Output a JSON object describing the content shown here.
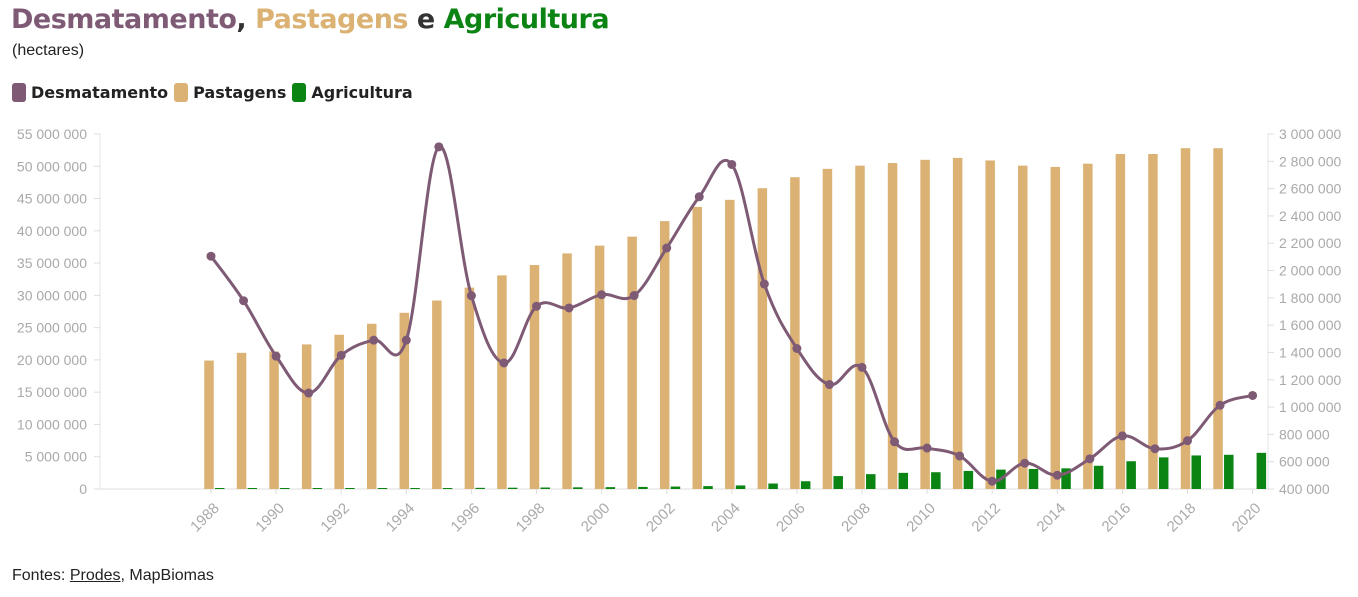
{
  "title": {
    "part1": "Desmatamento",
    "sep1": ", ",
    "part2": "Pastagens",
    "sep2": " e ",
    "part3": "Agricultura"
  },
  "subtitle": "(hectares)",
  "legend": [
    {
      "label": "Desmatamento",
      "color": "#7e5a75"
    },
    {
      "label": "Pastagens",
      "color": "#dbb274"
    },
    {
      "label": "Agricultura",
      "color": "#0b8414"
    }
  ],
  "footer": {
    "prefix": "Fontes: ",
    "link": "Prodes",
    "suffix": ", MapBiomas"
  },
  "chart_data": {
    "type": "bar",
    "x": [
      1988,
      1989,
      1990,
      1991,
      1992,
      1993,
      1994,
      1995,
      1996,
      1997,
      1998,
      1999,
      2000,
      2001,
      2002,
      2003,
      2004,
      2005,
      2006,
      2007,
      2008,
      2009,
      2010,
      2011,
      2012,
      2013,
      2014,
      2015,
      2016,
      2017,
      2018,
      2019,
      2020
    ],
    "x_tick_labels": [
      "1988",
      "1990",
      "1992",
      "1994",
      "1996",
      "1998",
      "2000",
      "2002",
      "2004",
      "2006",
      "2008",
      "2010",
      "2012",
      "2014",
      "2016",
      "2018",
      "2020"
    ],
    "left_axis": {
      "min": 0,
      "max": 55000000,
      "ticks": [
        "0",
        "5 000 000",
        "10 000 000",
        "15 000 000",
        "20 000 000",
        "25 000 000",
        "30 000 000",
        "35 000 000",
        "40 000 000",
        "45 000 000",
        "50 000 000",
        "55 000 000"
      ]
    },
    "right_axis": {
      "min": 400000,
      "max": 3000000,
      "ticks": [
        "400 000",
        "600 000",
        "800 000",
        "1 000 000",
        "1 200 000",
        "1 400 000",
        "1 600 000",
        "1 800 000",
        "2 000 000",
        "2 200 000",
        "2 400 000",
        "2 600 000",
        "2 800 000",
        "3 000 000"
      ]
    },
    "series": [
      {
        "name": "Pastagens",
        "kind": "bar",
        "axis": "left",
        "color": "#dbb274",
        "values": [
          19900000,
          21100000,
          21300000,
          22400000,
          23900000,
          25600000,
          27300000,
          29200000,
          31200000,
          33100000,
          34700000,
          36500000,
          37700000,
          39100000,
          41500000,
          43700000,
          44800000,
          46600000,
          48300000,
          49600000,
          50100000,
          50500000,
          51000000,
          51300000,
          50900000,
          50100000,
          49900000,
          50400000,
          51900000,
          51900000,
          52800000,
          52800000,
          null
        ]
      },
      {
        "name": "Agricultura",
        "kind": "bar",
        "axis": "left",
        "color": "#0b8414",
        "values": [
          50000,
          60000,
          70000,
          80000,
          90000,
          100000,
          120000,
          150000,
          180000,
          200000,
          230000,
          260000,
          290000,
          320000,
          380000,
          450000,
          550000,
          850000,
          1200000,
          2000000,
          2300000,
          2500000,
          2600000,
          2800000,
          3000000,
          3100000,
          3200000,
          3600000,
          4300000,
          4900000,
          5200000,
          5300000,
          5600000
        ]
      },
      {
        "name": "Desmatamento",
        "kind": "line",
        "axis": "right",
        "color": "#7e5a75",
        "values": [
          2105000,
          1779000,
          1373000,
          1103000,
          1379000,
          1490000,
          1490000,
          2906000,
          1816000,
          1323000,
          1738000,
          1726000,
          1823000,
          1817000,
          2165000,
          2540000,
          2777000,
          1901000,
          1429000,
          1165000,
          1291000,
          746000,
          700000,
          642000,
          457000,
          589000,
          501000,
          621000,
          789000,
          695000,
          754000,
          1013000,
          1085000
        ]
      }
    ],
    "grid": "horizontal"
  }
}
